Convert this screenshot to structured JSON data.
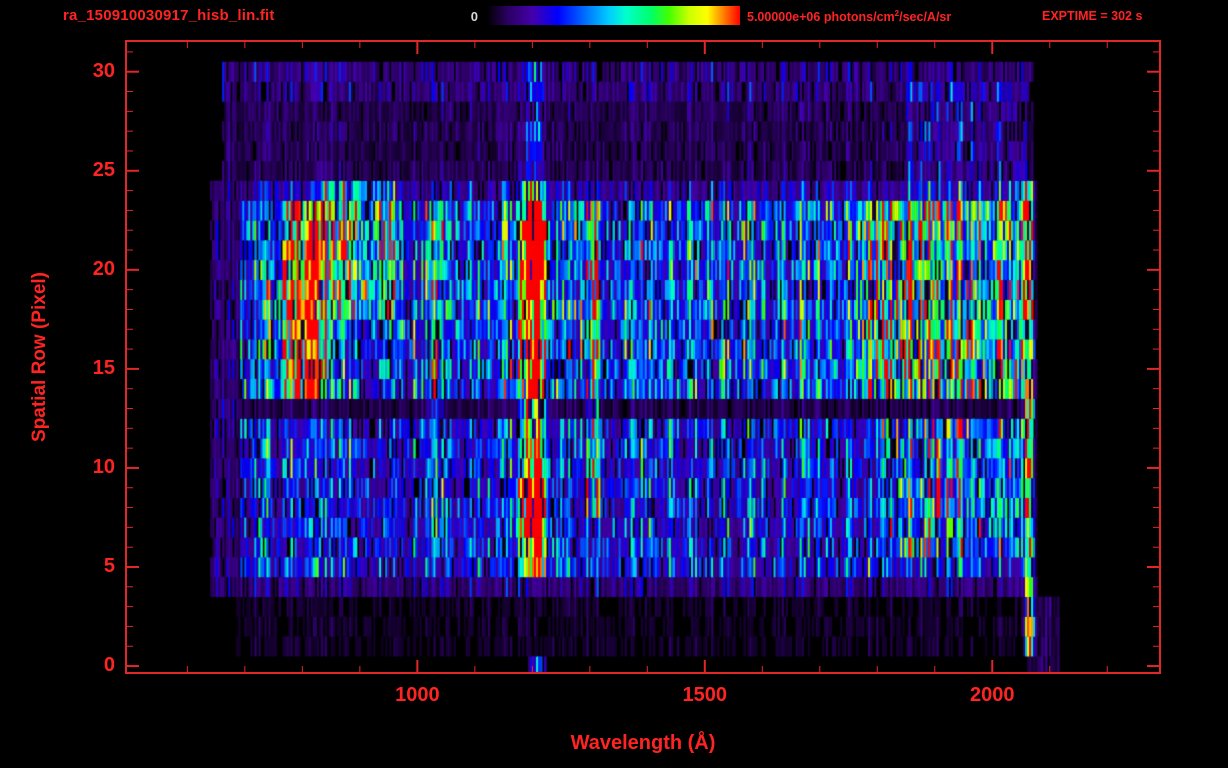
{
  "header": {
    "title": "ra_150910030917_hisb_lin.fit",
    "colorbar_min": "0",
    "colorbar_max_pre": "5.00000e+06 photons/cm",
    "colorbar_max_sup": "2",
    "colorbar_max_post": "/sec/A/sr",
    "exptime": "EXPTIME = 302 s"
  },
  "colors": {
    "annotation": "#ff2424",
    "frame": "#e02828",
    "background": "#000000",
    "colorbar_min_label": "#d8d8d8"
  },
  "chart_data": {
    "type": "heatmap",
    "title": "ra_150910030917_hisb_lin.fit",
    "xlabel": "Wavelength (Å)",
    "ylabel": "Spatial Row (Pixel)",
    "x_range": [
      495,
      2290
    ],
    "y_range": [
      -0.3,
      31.5
    ],
    "xticks": [
      1000,
      1500,
      2000
    ],
    "x_minor_step": 100,
    "yticks": [
      0,
      5,
      10,
      15,
      20,
      25,
      30
    ],
    "y_minor_step": 1,
    "data_extent": {
      "wavelength": [
        636,
        2078
      ],
      "rows": [
        0,
        30
      ]
    },
    "colorbar": {
      "min": 0,
      "max": 5000000,
      "min_label": "0",
      "max_label": "5.00000e+06 photons/cm²/sec/A/sr",
      "units": "photons/cm²/sec/A/sr",
      "stops": [
        {
          "t": 0.0,
          "color": "#000000"
        },
        {
          "t": 0.08,
          "color": "#2a0060"
        },
        {
          "t": 0.18,
          "color": "#4400aa"
        },
        {
          "t": 0.28,
          "color": "#0000ff"
        },
        {
          "t": 0.38,
          "color": "#0066ff"
        },
        {
          "t": 0.48,
          "color": "#00ccff"
        },
        {
          "t": 0.55,
          "color": "#00ffcc"
        },
        {
          "t": 0.65,
          "color": "#00ff66"
        },
        {
          "t": 0.72,
          "color": "#44ff00"
        },
        {
          "t": 0.8,
          "color": "#ccff00"
        },
        {
          "t": 0.87,
          "color": "#ffff00"
        },
        {
          "t": 0.93,
          "color": "#ff8800"
        },
        {
          "t": 1.0,
          "color": "#ff0000"
        }
      ]
    },
    "annotations": {
      "exptime": "EXPTIME = 302 s"
    },
    "noise_seed": 1150910,
    "noise": {
      "col_base": 0.6,
      "col_amp": 0.9,
      "cell_base": 0.5,
      "cell_amp": 1.0,
      "dropout": 0.12,
      "dropout_factor": 0.07,
      "threshold": 0.03
    },
    "features": [
      {
        "name": "lower-continuum",
        "type": "band",
        "rows": [
          5,
          12
        ],
        "wl": [
          690,
          2062
        ],
        "level": 0.38
      },
      {
        "name": "row4-faint",
        "type": "band",
        "rows": [
          4,
          4
        ],
        "wl": [
          690,
          2062
        ],
        "level": 0.18
      },
      {
        "name": "upper-continuum",
        "type": "band",
        "rows": [
          14,
          23
        ],
        "wl": [
          690,
          2062
        ],
        "level": 0.5
      },
      {
        "name": "dark-lane-row13",
        "type": "band",
        "rows": [
          13,
          13
        ],
        "wl": [
          690,
          2062
        ],
        "level": 0.1
      },
      {
        "name": "row24-transition",
        "type": "band",
        "rows": [
          24,
          24
        ],
        "wl": [
          690,
          2062
        ],
        "level": 0.26
      },
      {
        "name": "upper-noise-rows25-30",
        "type": "band",
        "rows": [
          25,
          30
        ],
        "wl": [
          660,
          2070
        ],
        "level": 0.11
      },
      {
        "name": "top-rows-denser",
        "type": "band",
        "rows": [
          29,
          30
        ],
        "wl": [
          660,
          2070
        ],
        "level": 0.07
      },
      {
        "name": "lower-sparse-rows1-3",
        "type": "band",
        "rows": [
          1,
          3
        ],
        "wl": [
          680,
          2070
        ],
        "level": 0.05
      },
      {
        "name": "left-sparse-edge",
        "type": "band",
        "rows": [
          4,
          24
        ],
        "wl": [
          638,
          690
        ],
        "level": 0.16
      },
      {
        "name": "emission-blob-800",
        "type": "gauss",
        "rows": [
          14,
          23
        ],
        "center": 800,
        "sigma": 24,
        "level": 1.05
      },
      {
        "name": "green-patch-880",
        "type": "band",
        "rows": [
          18,
          24
        ],
        "wl": [
          835,
          960
        ],
        "level": 0.42
      },
      {
        "name": "line-1030",
        "type": "gauss",
        "rows": [
          6,
          23
        ],
        "center": 1028,
        "sigma": 9,
        "level": 0.3
      },
      {
        "name": "lyman-alpha-1200",
        "type": "gauss",
        "rows": [
          5,
          24
        ],
        "center": 1200,
        "sigma": 13,
        "level": 1.15
      },
      {
        "name": "lya-core-lower",
        "type": "gauss",
        "rows": [
          7,
          9
        ],
        "center": 1200,
        "sigma": 14,
        "level": 0.8
      },
      {
        "name": "lya-core-upper",
        "type": "gauss",
        "rows": [
          19,
          22
        ],
        "center": 1198,
        "sigma": 14,
        "level": 0.8
      },
      {
        "name": "lya-row0-speck",
        "type": "gauss",
        "rows": [
          0,
          0
        ],
        "center": 1205,
        "sigma": 12,
        "level": 0.3
      },
      {
        "name": "lya-upper-noise",
        "type": "gauss",
        "rows": [
          25,
          30
        ],
        "center": 1200,
        "sigma": 12,
        "level": 0.22
      },
      {
        "name": "line-1305",
        "type": "gauss",
        "rows": [
          8,
          23
        ],
        "center": 1304,
        "sigma": 8,
        "level": 0.45
      },
      {
        "name": "red-continuum-upper",
        "type": "band",
        "rows": [
          14,
          23
        ],
        "wl": [
          1760,
          2056
        ],
        "level": 0.4
      },
      {
        "name": "red-continuum-lower",
        "type": "band",
        "rows": [
          6,
          12
        ],
        "wl": [
          1800,
          2052
        ],
        "level": 0.26
      },
      {
        "name": "red-continuum-top-noise",
        "type": "band",
        "rows": [
          24,
          29
        ],
        "wl": [
          1850,
          2060
        ],
        "level": 0.12
      },
      {
        "name": "edge-line-2064",
        "type": "gauss",
        "rows": [
          1,
          24
        ],
        "center": 2064,
        "sigma": 4.5,
        "level": 1.7
      },
      {
        "name": "corner-specks-bottom-right",
        "type": "band",
        "rows": [
          0,
          3
        ],
        "wl": [
          2060,
          2115
        ],
        "level": 0.1
      }
    ]
  }
}
